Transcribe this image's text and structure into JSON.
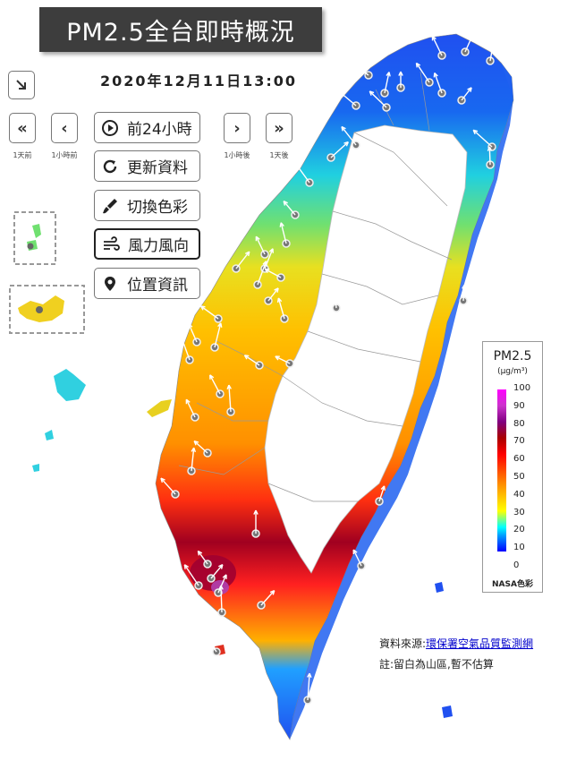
{
  "title": "PM2.5全台即時概況",
  "datetime": "2020年12月11日13:00",
  "nav": {
    "prev_day": "«",
    "prev_day_caption": "1天前",
    "prev_hour": "‹",
    "prev_hour_caption": "1小時前",
    "next_hour": "›",
    "next_hour_caption": "1小時後",
    "next_day": "»",
    "next_day_caption": "1天後",
    "collapse_icon": "arrow-down-right-icon"
  },
  "menu": [
    {
      "label": "前24小時",
      "icon": "play-circle-icon"
    },
    {
      "label": "更新資料",
      "icon": "refresh-icon"
    },
    {
      "label": "切換色彩",
      "icon": "paint-brush-icon"
    },
    {
      "label": "風力風向",
      "icon": "wind-icon"
    },
    {
      "label": "位置資訊",
      "icon": "location-pin-icon"
    }
  ],
  "legend": {
    "title": "PM2.5",
    "unit": "(μg/m³)",
    "ticks": [
      "100",
      "90",
      "80",
      "70",
      "60",
      "50",
      "40",
      "30",
      "20",
      "10",
      "0"
    ],
    "scheme": "NASA色彩",
    "colors": [
      "#0000ff",
      "#00a0ff",
      "#00ffff",
      "#ffff00",
      "#ff9900",
      "#ff0000",
      "#aa0000",
      "#800080",
      "#ff00ff"
    ]
  },
  "source": {
    "label": "資料來源:",
    "link": "環保署空氣品質監測網"
  },
  "note": "註:留白為山區,暫不估算"
}
